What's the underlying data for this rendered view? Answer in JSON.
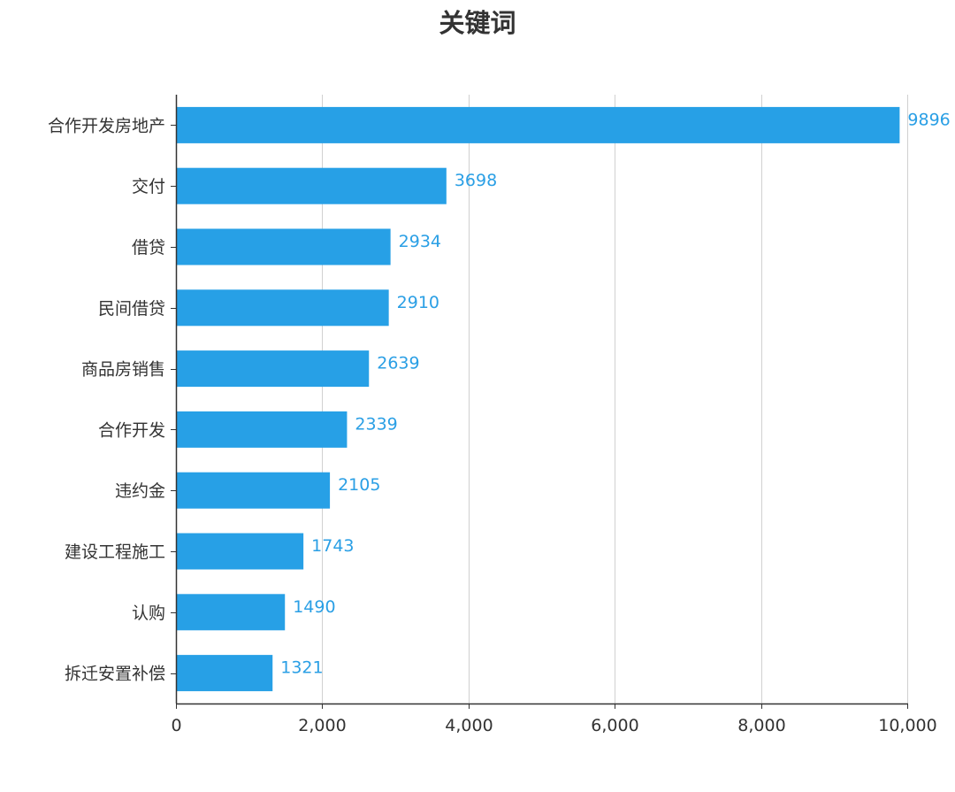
{
  "chart_data": {
    "type": "bar",
    "orientation": "horizontal",
    "title": "关键词",
    "categories": [
      "合作开发房地产",
      "交付",
      "借贷",
      "民间借贷",
      "商品房销售",
      "合作开发",
      "违约金",
      "建设工程施工",
      "认购",
      "拆迁安置补偿"
    ],
    "values": [
      9896,
      3698,
      2934,
      2910,
      2639,
      2339,
      2105,
      1743,
      1490,
      1321
    ],
    "value_labels": [
      "9896",
      "3698",
      "2934",
      "2910",
      "2639",
      "2339",
      "2105",
      "1743",
      "1490",
      "1321"
    ],
    "xlim": [
      0,
      10000
    ],
    "x_ticks": [
      0,
      2000,
      4000,
      6000,
      8000,
      10000
    ],
    "x_tick_labels": [
      "0",
      "2,000",
      "4,000",
      "6,000",
      "8,000",
      "10,000"
    ],
    "xlabel": "",
    "ylabel": "",
    "grid": "vertical",
    "legend": "none",
    "bar_color": "#27a0e6",
    "label_color": "#2a9fe5"
  }
}
